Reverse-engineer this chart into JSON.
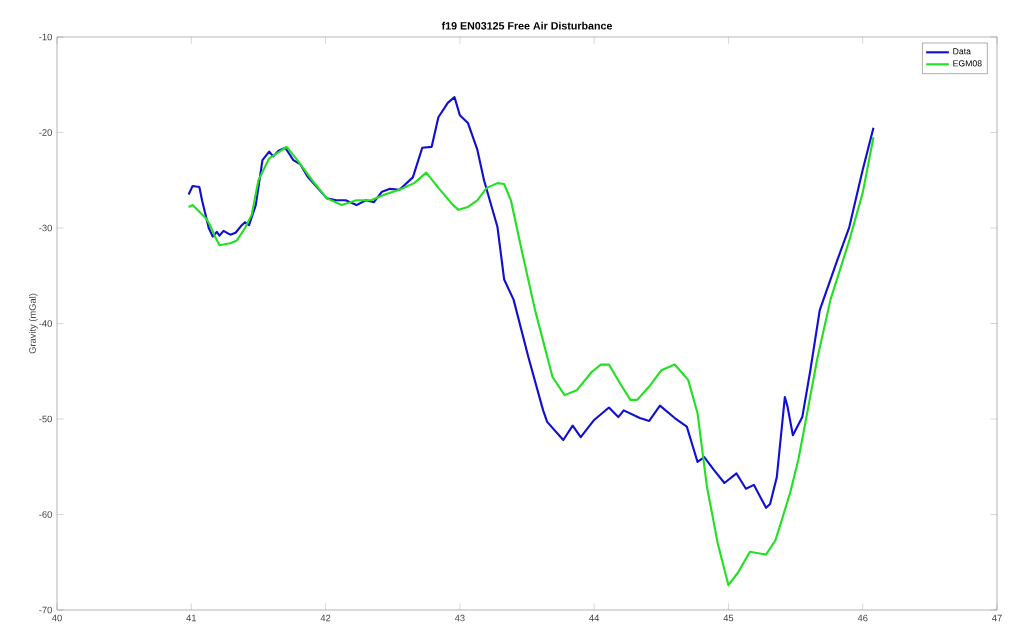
{
  "chart_data": {
    "type": "line",
    "title": "f19 EN03125 Free Air Disturbance",
    "ylabel": "Gravity (mGal)",
    "xlim": [
      40,
      47
    ],
    "xticks": [
      40,
      41,
      42,
      43,
      44,
      45,
      46,
      47
    ],
    "ylim": [
      -70,
      -10
    ],
    "yticks": [
      -70,
      -60,
      -50,
      -40,
      -30,
      -20,
      -10
    ],
    "legend": "top right",
    "marker": "none",
    "line_style": "solid",
    "series": [
      {
        "name": "Data",
        "color": "#1010d0",
        "x": [
          40.98,
          41.01,
          41.06,
          41.08,
          41.13,
          41.16,
          41.19,
          41.21,
          41.24,
          41.29,
          41.33,
          41.37,
          41.4,
          41.43,
          41.48,
          41.53,
          41.58,
          41.61,
          41.65,
          41.7,
          41.76,
          41.81,
          41.87,
          41.94,
          42.01,
          42.08,
          42.15,
          42.23,
          42.3,
          42.36,
          42.42,
          42.48,
          42.55,
          42.65,
          42.72,
          42.79,
          42.84,
          42.91,
          42.96,
          43.0,
          43.06,
          43.13,
          43.18,
          43.28,
          43.33,
          43.4,
          43.51,
          43.62,
          43.65,
          43.77,
          43.84,
          43.9,
          44.0,
          44.11,
          44.18,
          44.22,
          44.34,
          44.41,
          44.49,
          44.6,
          44.69,
          44.77,
          44.82,
          44.89,
          44.97,
          45.06,
          45.13,
          45.19,
          45.28,
          45.31,
          45.36,
          45.42,
          45.44,
          45.48,
          45.55,
          45.61,
          45.68,
          45.81,
          45.9,
          46.0,
          46.08
        ],
        "values": [
          -26.5,
          -25.6,
          -25.7,
          -27.1,
          -30.0,
          -30.9,
          -30.4,
          -30.8,
          -30.3,
          -30.7,
          -30.5,
          -29.8,
          -29.4,
          -29.7,
          -27.6,
          -22.9,
          -22.0,
          -22.5,
          -21.9,
          -21.6,
          -22.9,
          -23.3,
          -24.7,
          -25.8,
          -26.9,
          -27.1,
          -27.1,
          -27.6,
          -27.1,
          -27.3,
          -26.2,
          -25.9,
          -26.0,
          -24.7,
          -21.6,
          -21.5,
          -18.4,
          -16.9,
          -16.3,
          -18.2,
          -19.0,
          -21.8,
          -25.0,
          -29.9,
          -35.4,
          -37.5,
          -43.5,
          -49.1,
          -50.3,
          -52.2,
          -50.7,
          -51.9,
          -50.1,
          -48.8,
          -49.8,
          -49.1,
          -49.9,
          -50.2,
          -48.6,
          -49.9,
          -50.8,
          -54.5,
          -54.0,
          -55.3,
          -56.7,
          -55.7,
          -57.3,
          -56.9,
          -59.3,
          -58.9,
          -56.1,
          -47.7,
          -48.7,
          -51.7,
          -49.8,
          -44.9,
          -38.6,
          -33.4,
          -29.9,
          -23.9,
          -19.5
        ]
      },
      {
        "name": "EGM08",
        "color": "#22e022",
        "x": [
          40.98,
          41.01,
          41.06,
          41.11,
          41.14,
          41.18,
          41.21,
          41.29,
          41.34,
          41.4,
          41.45,
          41.5,
          41.58,
          41.68,
          41.71,
          41.79,
          41.9,
          42.01,
          42.12,
          42.23,
          42.34,
          42.44,
          42.55,
          42.66,
          42.75,
          42.84,
          42.95,
          42.99,
          43.06,
          43.13,
          43.2,
          43.28,
          43.33,
          43.38,
          43.46,
          43.56,
          43.69,
          43.78,
          43.87,
          43.98,
          44.05,
          44.11,
          44.19,
          44.27,
          44.32,
          44.41,
          44.5,
          44.6,
          44.7,
          44.77,
          44.84,
          44.92,
          45.0,
          45.07,
          45.16,
          45.28,
          45.35,
          45.39,
          45.46,
          45.52,
          45.59,
          45.66,
          45.76,
          45.9,
          46.0,
          46.08
        ],
        "values": [
          -27.8,
          -27.6,
          -28.3,
          -29.0,
          -29.7,
          -31.0,
          -31.8,
          -31.6,
          -31.3,
          -30.0,
          -28.6,
          -25.0,
          -22.7,
          -21.8,
          -21.5,
          -22.9,
          -25.0,
          -26.9,
          -27.6,
          -27.1,
          -27.1,
          -26.5,
          -26.0,
          -25.3,
          -24.2,
          -25.8,
          -27.6,
          -28.1,
          -27.8,
          -27.1,
          -25.8,
          -25.3,
          -25.4,
          -27.1,
          -32.3,
          -38.6,
          -45.6,
          -47.5,
          -47.0,
          -45.1,
          -44.3,
          -44.3,
          -46.2,
          -48.0,
          -48.0,
          -46.6,
          -44.9,
          -44.3,
          -45.9,
          -49.4,
          -57.1,
          -63.0,
          -67.4,
          -66.1,
          -63.9,
          -64.2,
          -62.7,
          -60.9,
          -57.7,
          -54.3,
          -49.1,
          -43.8,
          -37.5,
          -31.3,
          -26.3,
          -20.5
        ]
      }
    ]
  }
}
